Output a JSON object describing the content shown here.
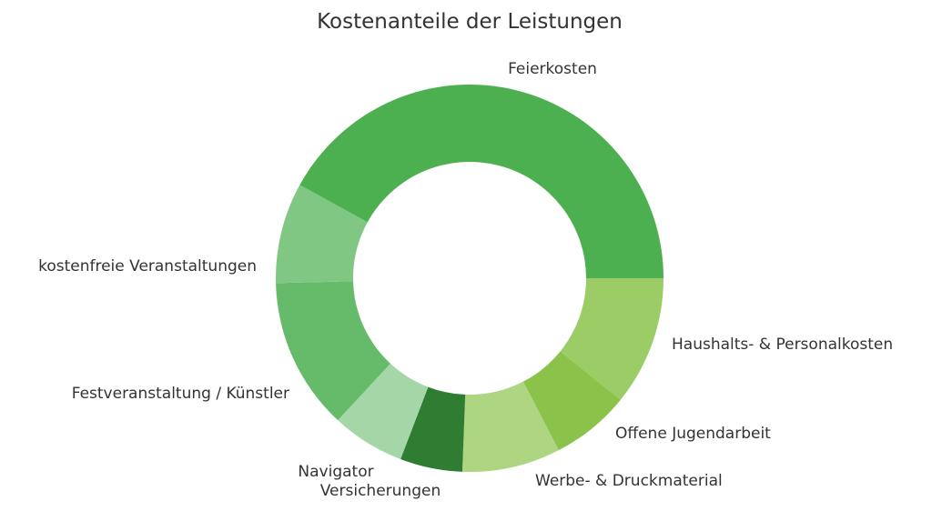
{
  "chart_data": {
    "type": "pie",
    "title": "Kostenanteile der Leistungen",
    "style": "donut",
    "slices": [
      {
        "label": "Haushalts- & Personalkosten",
        "value": 10.8,
        "color": "#9ccc65"
      },
      {
        "label": "Offene Jugendarbeit",
        "value": 6.6,
        "color": "#8bc34a"
      },
      {
        "label": "Werbe- & Druckmaterial",
        "value": 8.2,
        "color": "#aed581"
      },
      {
        "label": "Versicherungen",
        "value": 5.2,
        "color": "#2e7d32"
      },
      {
        "label": "Navigator",
        "value": 6.1,
        "color": "#a5d6a7"
      },
      {
        "label": "Festveranstaltung / Künstler",
        "value": 12.7,
        "color": "#66bb6a"
      },
      {
        "label": "kostenfreie Veranstaltungen",
        "value": 8.4,
        "color": "#81c784"
      },
      {
        "label": "Feierkosten",
        "value": 42.0,
        "color": "#4caf50"
      }
    ]
  }
}
